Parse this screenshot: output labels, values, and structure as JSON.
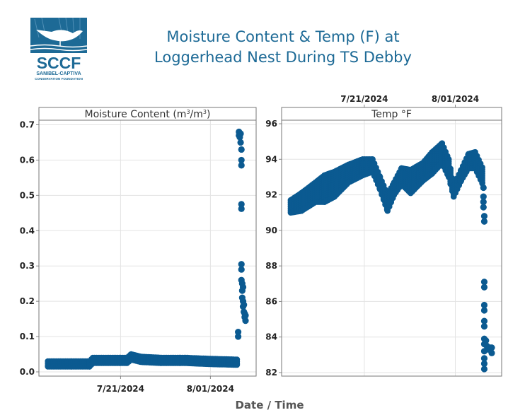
{
  "logo": {
    "abbr": "SCCF",
    "line1": "SANIBEL-CAPTIVA",
    "line2": "CONSERVATION FOUNDATION",
    "color": "#1d6a96"
  },
  "title": {
    "line1": "Moisture Content & Temp (F) at",
    "line2": "Loggerhead Nest During TS Debby"
  },
  "chart_data": {
    "type": "scatter",
    "xlabel": "Date / Time",
    "x_units": "days relative to 7/21/2024",
    "x_ticks": [
      {
        "value": 0,
        "label": "7/21/2024"
      },
      {
        "value": 11,
        "label": "8/01/2024"
      }
    ],
    "xlim": [
      -10,
      16.6
    ],
    "marker_color": "#0b5a91",
    "panels": [
      {
        "title": "Moisture Content (m³/m³)",
        "title_base": "Moisture Content (m",
        "title_mid": "/m",
        "title_end": ")",
        "sup": "3",
        "ylim": [
          -0.012,
          0.713
        ],
        "y_ticks": [
          0.0,
          0.1,
          0.2,
          0.3,
          0.4,
          0.5,
          0.6,
          0.7
        ],
        "y_tick_labels": [
          "0.0",
          "0.1",
          "0.2",
          "0.3",
          "0.4",
          "0.5",
          "0.6",
          "0.7"
        ],
        "x_labels_position": "bottom",
        "bands": [
          [
            -8.9,
            0.015,
            0.03
          ],
          [
            -6.0,
            0.015,
            0.03
          ],
          [
            -3.8,
            0.015,
            0.03
          ],
          [
            -3.4,
            0.025,
            0.04
          ],
          [
            0.0,
            0.025,
            0.04
          ],
          [
            0.8,
            0.025,
            0.04
          ],
          [
            1.3,
            0.035,
            0.05
          ],
          [
            2.5,
            0.028,
            0.043
          ],
          [
            5.0,
            0.025,
            0.04
          ],
          [
            8.0,
            0.025,
            0.04
          ],
          [
            11.0,
            0.022,
            0.037
          ],
          [
            14.3,
            0.02,
            0.035
          ]
        ],
        "points": [
          [
            14.4,
            0.1
          ],
          [
            14.4,
            0.113
          ],
          [
            14.5,
            0.68
          ],
          [
            14.5,
            0.67
          ],
          [
            14.6,
            0.665
          ],
          [
            14.7,
            0.675
          ],
          [
            14.7,
            0.65
          ],
          [
            14.8,
            0.63
          ],
          [
            14.8,
            0.6
          ],
          [
            14.8,
            0.585
          ],
          [
            14.8,
            0.475
          ],
          [
            14.8,
            0.462
          ],
          [
            14.8,
            0.305
          ],
          [
            14.8,
            0.29
          ],
          [
            14.8,
            0.26
          ],
          [
            14.9,
            0.25
          ],
          [
            14.9,
            0.23
          ],
          [
            14.9,
            0.21
          ],
          [
            15.0,
            0.24
          ],
          [
            15.0,
            0.2
          ],
          [
            15.0,
            0.185
          ],
          [
            15.1,
            0.19
          ],
          [
            15.1,
            0.17
          ],
          [
            15.2,
            0.165
          ],
          [
            15.2,
            0.155
          ],
          [
            15.3,
            0.145
          ],
          [
            15.3,
            0.16
          ]
        ]
      },
      {
        "title": "Temp °F",
        "ylim": [
          81.8,
          96.2
        ],
        "y_ticks": [
          82,
          84,
          86,
          88,
          90,
          92,
          94,
          96
        ],
        "y_tick_labels": [
          "82",
          "84",
          "86",
          "88",
          "90",
          "92",
          "94",
          "96"
        ],
        "x_labels_position": "top",
        "bands": [
          [
            -8.9,
            91.0,
            91.7
          ],
          [
            -7.6,
            91.1,
            92.1
          ],
          [
            -5.9,
            91.6,
            92.7
          ],
          [
            -4.8,
            91.6,
            93.1
          ],
          [
            -3.6,
            91.9,
            93.3
          ],
          [
            -1.9,
            92.7,
            93.7
          ],
          [
            -0.2,
            93.1,
            94.0
          ],
          [
            1.0,
            93.3,
            94.0
          ],
          [
            1.9,
            92.3,
            93.0
          ],
          [
            2.8,
            91.1,
            92.0
          ],
          [
            3.6,
            92.0,
            92.7
          ],
          [
            4.5,
            92.6,
            93.5
          ],
          [
            5.6,
            92.1,
            93.4
          ],
          [
            7.1,
            92.8,
            93.8
          ],
          [
            8.2,
            93.2,
            94.4
          ],
          [
            9.4,
            93.8,
            94.9
          ],
          [
            10.2,
            93.0,
            94.0
          ],
          [
            10.8,
            91.9,
            92.5
          ],
          [
            11.7,
            92.8,
            93.4
          ],
          [
            12.6,
            93.5,
            94.3
          ],
          [
            13.4,
            93.5,
            94.4
          ],
          [
            14.3,
            92.6,
            93.5
          ]
        ],
        "points": [
          [
            14.4,
            92.4
          ],
          [
            14.4,
            91.9
          ],
          [
            14.4,
            91.6
          ],
          [
            14.4,
            91.3
          ],
          [
            14.5,
            90.8
          ],
          [
            14.5,
            90.5
          ],
          [
            14.5,
            87.1
          ],
          [
            14.5,
            86.8
          ],
          [
            14.5,
            85.8
          ],
          [
            14.5,
            85.5
          ],
          [
            14.5,
            84.9
          ],
          [
            14.5,
            84.6
          ],
          [
            14.5,
            83.9
          ],
          [
            14.5,
            83.6
          ],
          [
            14.5,
            83.2
          ],
          [
            14.5,
            82.8
          ],
          [
            14.5,
            82.5
          ],
          [
            14.5,
            82.2
          ],
          [
            14.7,
            83.8
          ],
          [
            14.8,
            83.5
          ],
          [
            15.0,
            83.3
          ],
          [
            15.2,
            83.4
          ],
          [
            15.4,
            83.1
          ],
          [
            15.4,
            83.4
          ]
        ]
      }
    ]
  }
}
